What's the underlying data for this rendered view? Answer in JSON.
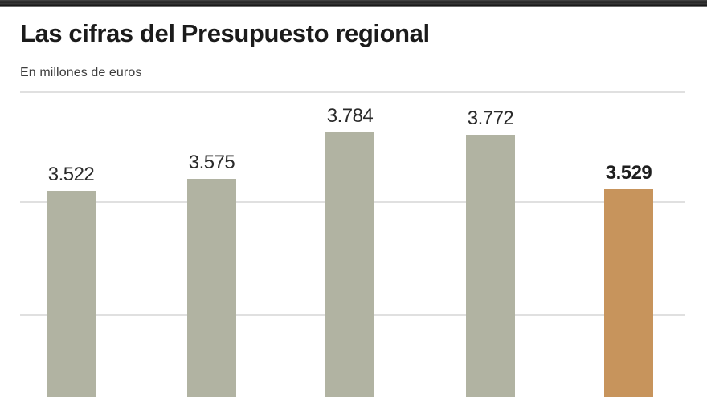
{
  "header": {
    "title": "Las cifras del Presupuesto regional",
    "subtitle": "En millones de euros"
  },
  "chart_data": {
    "type": "bar",
    "title": "Las cifras del Presupuesto regional",
    "units_label": "En millones de euros",
    "values": [
      3522,
      3575,
      3784,
      3772,
      3529
    ],
    "labels": [
      "3.522",
      "3.575",
      "3.784",
      "3.772",
      "3.529"
    ],
    "highlighted_index": 4,
    "bar_color": "#b1b3a2",
    "highlight_color": "#c7945c",
    "grid": "horizontal unlabeled gridlines",
    "baseline_cropped": true,
    "legend": "none"
  }
}
